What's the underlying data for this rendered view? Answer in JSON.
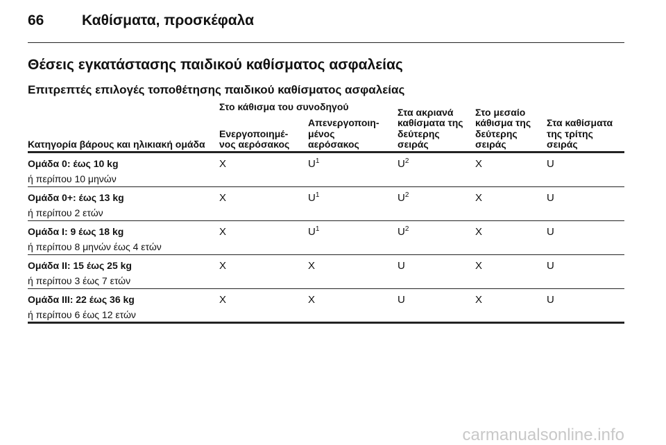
{
  "header": {
    "page_number": "66",
    "title": "Καθίσματα, προσκέφαλα"
  },
  "section": {
    "title": "Θέσεις εγκατάστασης παιδικού καθίσματος ασφαλείας",
    "subtitle": "Επιτρεπτές επιλογές τοποθέτησης παιδικού καθίσματος ασφαλείας"
  },
  "table": {
    "group_header": "Στο κάθισμα του συνοδηγού",
    "columns": [
      [
        "Κατηγορία βάρους και ηλικιακή ομάδα"
      ],
      [
        "Ενεργοποιημέ-",
        "νος αερόσακος"
      ],
      [
        "Απενεργοποιη-",
        "μένος",
        "αερόσακος"
      ],
      [
        "Στα ακριανά",
        "καθίσματα της",
        "δεύτερης",
        "σειράς"
      ],
      [
        "Στο μεσαίο",
        "κάθισμα της",
        "δεύτερης",
        "σειράς"
      ],
      [
        "Στα καθίσματα",
        "της τρίτης",
        "σειράς"
      ]
    ],
    "rows": [
      {
        "group": "Ομάδα 0: έως 10 kg",
        "age": "ή περίπου 10 μηνών",
        "cells": [
          "X",
          {
            "text": "U",
            "sup": "1"
          },
          {
            "text": "U",
            "sup": "2"
          },
          "X",
          "U"
        ]
      },
      {
        "group": "Ομάδα 0+: έως 13 kg",
        "age": "ή περίπου 2 ετών",
        "cells": [
          "X",
          {
            "text": "U",
            "sup": "1"
          },
          {
            "text": "U",
            "sup": "2"
          },
          "X",
          "U"
        ]
      },
      {
        "group": "Ομάδα I: 9 έως 18 kg",
        "age": "ή περίπου 8 μηνών έως 4 ετών",
        "cells": [
          "X",
          {
            "text": "U",
            "sup": "1"
          },
          {
            "text": "U",
            "sup": "2"
          },
          "X",
          "U"
        ]
      },
      {
        "group": "Ομάδα II: 15 έως 25 kg",
        "age": "ή περίπου 3 έως 7 ετών",
        "cells": [
          "X",
          "X",
          "U",
          "X",
          "U"
        ]
      },
      {
        "group": "Ομάδα III: 22 έως 36 kg",
        "age": "ή περίπου 6 έως 12 ετών",
        "cells": [
          "X",
          "X",
          "U",
          "X",
          "U"
        ]
      }
    ]
  },
  "watermark": "carmanualsonline.info"
}
